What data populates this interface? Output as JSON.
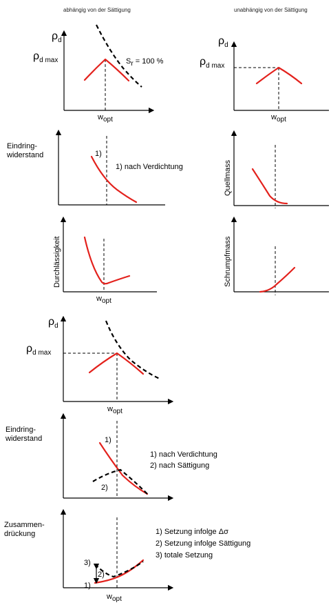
{
  "header": {
    "left": "abhängig von der Sättigung",
    "right": "unabhängig von der Sättigung"
  },
  "symbols": {
    "rho": "ρ",
    "d": "d",
    "d_max": "d max",
    "w": "w",
    "opt": "opt",
    "s": "S",
    "r": "r",
    "sr_value": " = 100 %"
  },
  "labels": {
    "eindring_1": "Eindring-",
    "eindring_2": "widerstand",
    "quellmass": "Quellmass",
    "schrumpfmass": "Schrumpfmass",
    "durchlaessigkeit": "Durchlässigkeit",
    "zusammen_1": "Zusammen-",
    "zusammen_2": "drückung"
  },
  "markers": {
    "m1": "1)",
    "m2": "2)",
    "m3": "3)"
  },
  "legends": {
    "eindring_small": "1) nach Verdichtung",
    "eindring_big": [
      "1) nach Verdichtung",
      "2) nach Sättigung"
    ],
    "zusammen": [
      "1) Setzung infolge Δσ",
      "2) Setzung infolge Sättigung",
      "3) totale Setzung"
    ]
  },
  "colors": {
    "curve": "#e3211c",
    "saturation_curve": "#000000",
    "axis": "#000000"
  }
}
